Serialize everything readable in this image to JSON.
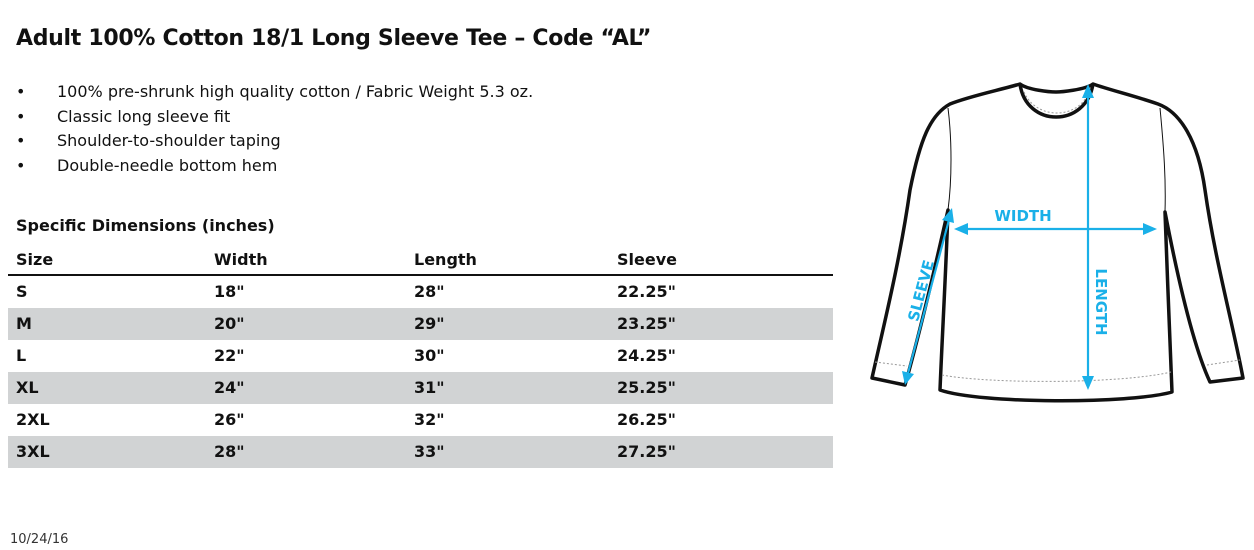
{
  "title": "Adult 100% Cotton 18/1 Long Sleeve Tee – Code “AL”",
  "features": [
    "100% pre-shrunk high quality cotton / Fabric Weight 5.3 oz.",
    "Classic long sleeve fit",
    "Shoulder-to-shoulder taping",
    "Double-needle bottom hem"
  ],
  "bullet_char": "•",
  "dimensions": {
    "heading": "Specific Dimensions (inches)",
    "columns": [
      "Size",
      "Width",
      "Length",
      "Sleeve"
    ],
    "rows": [
      [
        "S",
        "18\"",
        "28\"",
        "22.25\""
      ],
      [
        "M",
        "20\"",
        "29\"",
        "23.25\""
      ],
      [
        "L",
        "22\"",
        "30\"",
        "24.25\""
      ],
      [
        "XL",
        "24\"",
        "31\"",
        "25.25\""
      ],
      [
        "2XL",
        "26\"",
        "32\"",
        "26.25\""
      ],
      [
        "3XL",
        "28\"",
        "33\"",
        "27.25\""
      ]
    ],
    "stripe_color": "#d1d3d4"
  },
  "diagram": {
    "labels": {
      "width": "WIDTH",
      "length": "LENGTH",
      "sleeve": "SLEEVE"
    },
    "accent_color": "#1ab0e8"
  },
  "date": "10/24/16"
}
